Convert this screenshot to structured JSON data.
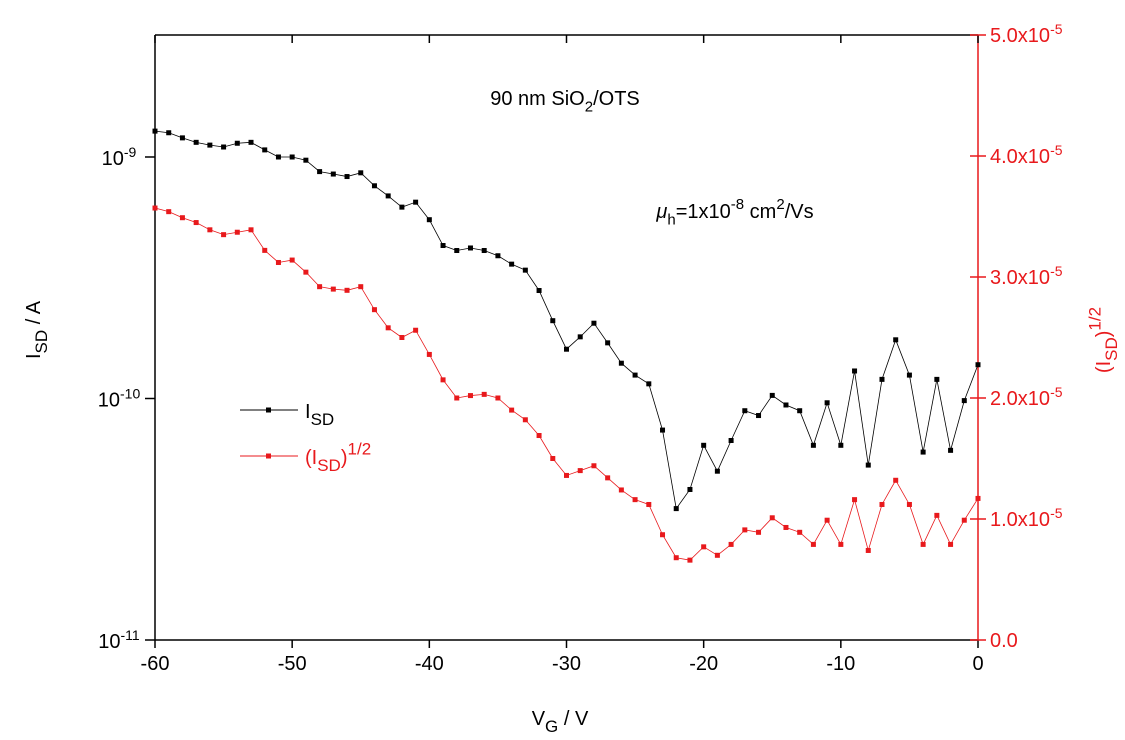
{
  "chart_data": {
    "type": "line",
    "title": [
      "90 nm SiO",
      "2",
      "/OTS"
    ],
    "annotation": [
      "μ",
      "h",
      "=1x10",
      "-8",
      " cm",
      "2",
      "/Vs"
    ],
    "x_label": [
      "V",
      "G",
      " / V"
    ],
    "y_label": [
      "I",
      "SD",
      " / A"
    ],
    "y2_label": [
      "(I",
      "SD",
      ")",
      "1/2"
    ],
    "xlim": [
      -60,
      0
    ],
    "xticks": [
      -60,
      -50,
      -40,
      -30,
      -20,
      -10,
      0
    ],
    "ylog": true,
    "ylim": [
      1e-11,
      3.2e-09
    ],
    "yticks": [
      {
        "value": 1e-11,
        "label": [
          "10",
          "-11"
        ]
      },
      {
        "value": 1e-10,
        "label": [
          "10",
          "-10"
        ]
      },
      {
        "value": 1e-09,
        "label": [
          "10",
          "-9"
        ]
      }
    ],
    "y2lim": [
      0,
      5e-05
    ],
    "y2ticks": [
      {
        "value": 0,
        "label": [
          "0.0"
        ]
      },
      {
        "value": 1e-05,
        "label": [
          "1.0x10",
          "-5"
        ]
      },
      {
        "value": 2e-05,
        "label": [
          "2.0x10",
          "-5"
        ]
      },
      {
        "value": 3e-05,
        "label": [
          "3.0x10",
          "-5"
        ]
      },
      {
        "value": 4e-05,
        "label": [
          "4.0x10",
          "-5"
        ]
      },
      {
        "value": 5e-05,
        "label": [
          "5.0x10",
          "-5"
        ]
      }
    ],
    "y2color": "#e8191c",
    "x": [
      -60,
      -59,
      -58,
      -57,
      -56,
      -55,
      -54,
      -53,
      -52,
      -51,
      -50,
      -49,
      -48,
      -47,
      -46,
      -45,
      -44,
      -43,
      -42,
      -41,
      -40,
      -39,
      -38,
      -37,
      -36,
      -35,
      -34,
      -33,
      -32,
      -31,
      -30,
      -29,
      -28,
      -27,
      -26,
      -25,
      -24,
      -23,
      -22,
      -21,
      -20,
      -19,
      -18,
      -17,
      -16,
      -15,
      -14,
      -13,
      -12,
      -11,
      -10,
      -9,
      -8,
      -7,
      -6,
      -5,
      -4,
      -3,
      -2,
      -1,
      0
    ],
    "series": [
      {
        "name": [
          "I",
          "SD"
        ],
        "color": "#000000",
        "values": [
          1.28e-09,
          1.26e-09,
          1.2e-09,
          1.15e-09,
          1.12e-09,
          1.1e-09,
          1.14e-09,
          1.15e-09,
          1.07e-09,
          1e-09,
          1e-09,
          9.7e-10,
          8.7e-10,
          8.5e-10,
          8.3e-10,
          8.6e-10,
          7.6e-10,
          6.9e-10,
          6.2e-10,
          6.5e-10,
          5.5e-10,
          4.3e-10,
          4.1e-10,
          4.2e-10,
          4.1e-10,
          3.9e-10,
          3.6e-10,
          3.4e-10,
          2.8e-10,
          2.1e-10,
          1.6e-10,
          1.8e-10,
          2.05e-10,
          1.7e-10,
          1.4e-10,
          1.25e-10,
          1.15e-10,
          7.4e-11,
          3.5e-11,
          4.2e-11,
          6.4e-11,
          5e-11,
          6.7e-11,
          8.9e-11,
          8.5e-11,
          1.03e-10,
          9.4e-11,
          8.9e-11,
          6.4e-11,
          9.6e-11,
          6.4e-11,
          1.3e-10,
          5.3e-11,
          1.2e-10,
          1.75e-10,
          1.25e-10,
          6e-11,
          1.2e-10,
          6.1e-11,
          9.8e-11,
          1.38e-10
        ]
      },
      {
        "name": [
          "(I",
          "SD",
          ")",
          "1/2"
        ],
        "color": "#e8191c",
        "axis": "y2",
        "values": [
          3.57e-05,
          3.54e-05,
          3.49e-05,
          3.45e-05,
          3.39e-05,
          3.35e-05,
          3.37e-05,
          3.39e-05,
          3.22e-05,
          3.12e-05,
          3.14e-05,
          3.04e-05,
          2.92e-05,
          2.9e-05,
          2.89e-05,
          2.92e-05,
          2.73e-05,
          2.58e-05,
          2.5e-05,
          2.56e-05,
          2.36e-05,
          2.15e-05,
          2e-05,
          2.02e-05,
          2.03e-05,
          2e-05,
          1.9e-05,
          1.82e-05,
          1.69e-05,
          1.5e-05,
          1.36e-05,
          1.4e-05,
          1.44e-05,
          1.34e-05,
          1.24e-05,
          1.16e-05,
          1.12e-05,
          8.7e-06,
          6.8e-06,
          6.6e-06,
          7.7e-06,
          7e-06,
          7.9e-06,
          9.1e-06,
          8.9e-06,
          1.01e-05,
          9.3e-06,
          8.9e-06,
          7.9e-06,
          9.9e-06,
          7.9e-06,
          1.16e-05,
          7.4e-06,
          1.12e-05,
          1.32e-05,
          1.12e-05,
          7.9e-06,
          1.03e-05,
          7.9e-06,
          9.9e-06,
          1.17e-05
        ]
      }
    ]
  }
}
